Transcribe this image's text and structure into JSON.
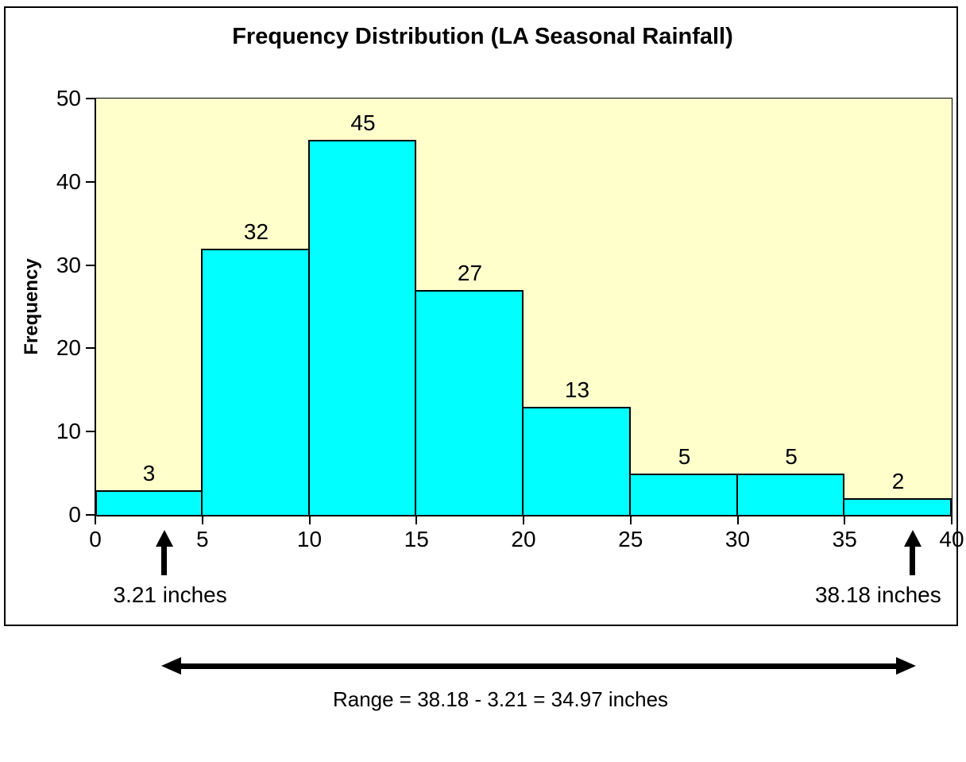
{
  "chart_data": {
    "type": "bar",
    "title": "Frequency Distribution (LA Seasonal Rainfall)",
    "xlabel": "",
    "ylabel": "Frequency",
    "bin_edges": [
      0,
      5,
      10,
      15,
      20,
      25,
      30,
      35,
      40
    ],
    "categories": [
      "0-5",
      "5-10",
      "10-15",
      "15-20",
      "20-25",
      "25-30",
      "30-35",
      "35-40"
    ],
    "values": [
      3,
      32,
      45,
      27,
      13,
      5,
      5,
      2
    ],
    "x_ticks": [
      "0",
      "5",
      "10",
      "15",
      "20",
      "25",
      "30",
      "35",
      "40"
    ],
    "y_ticks": [
      "0",
      "10",
      "20",
      "30",
      "40",
      "50"
    ],
    "xlim": [
      0,
      40
    ],
    "ylim": [
      0,
      50
    ],
    "grid": false,
    "legend": false,
    "data_labels_shown": true,
    "colors": {
      "bar_fill": "#00FFFF",
      "bar_border": "#000000",
      "plot_background": "#FFFFCC",
      "chart_background": "#FFFFFF",
      "text": "#000000"
    }
  },
  "annotations": {
    "min": {
      "label": "3.21 inches",
      "value": 3.21
    },
    "max": {
      "label": "38.18 inches",
      "value": 38.18
    },
    "range": {
      "label": "Range = 38.18 - 3.21 = 34.97 inches",
      "value": 34.97
    }
  }
}
